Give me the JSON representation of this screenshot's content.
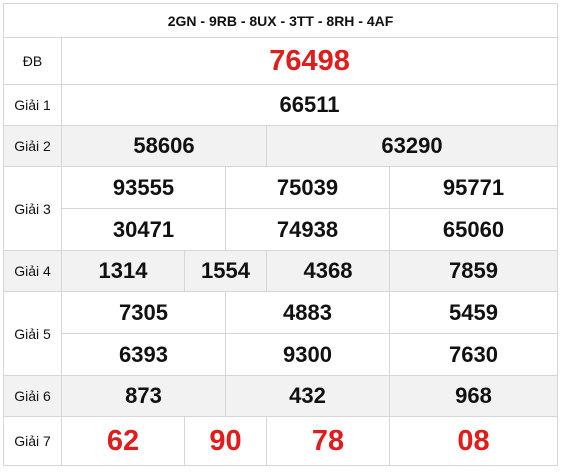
{
  "header": {
    "codes": "2GN - 9RB - 8UX - 3TT - 8RH - 4AF"
  },
  "prizes": {
    "db": {
      "label": "ĐB",
      "numbers": [
        "76498"
      ]
    },
    "g1": {
      "label": "Giải 1",
      "numbers": [
        "66511"
      ]
    },
    "g2": {
      "label": "Giải 2",
      "numbers": [
        "58606",
        "63290"
      ]
    },
    "g3": {
      "label": "Giải 3",
      "numbers": [
        "93555",
        "75039",
        "95771",
        "30471",
        "74938",
        "65060"
      ]
    },
    "g4": {
      "label": "Giải 4",
      "numbers": [
        "1314",
        "1554",
        "4368",
        "7859"
      ]
    },
    "g5": {
      "label": "Giải 5",
      "numbers": [
        "7305",
        "4883",
        "5459",
        "6393",
        "9300",
        "7630"
      ]
    },
    "g6": {
      "label": "Giải 6",
      "numbers": [
        "873",
        "432",
        "968"
      ]
    },
    "g7": {
      "label": "Giải 7",
      "numbers": [
        "62",
        "90",
        "78",
        "08"
      ]
    }
  }
}
